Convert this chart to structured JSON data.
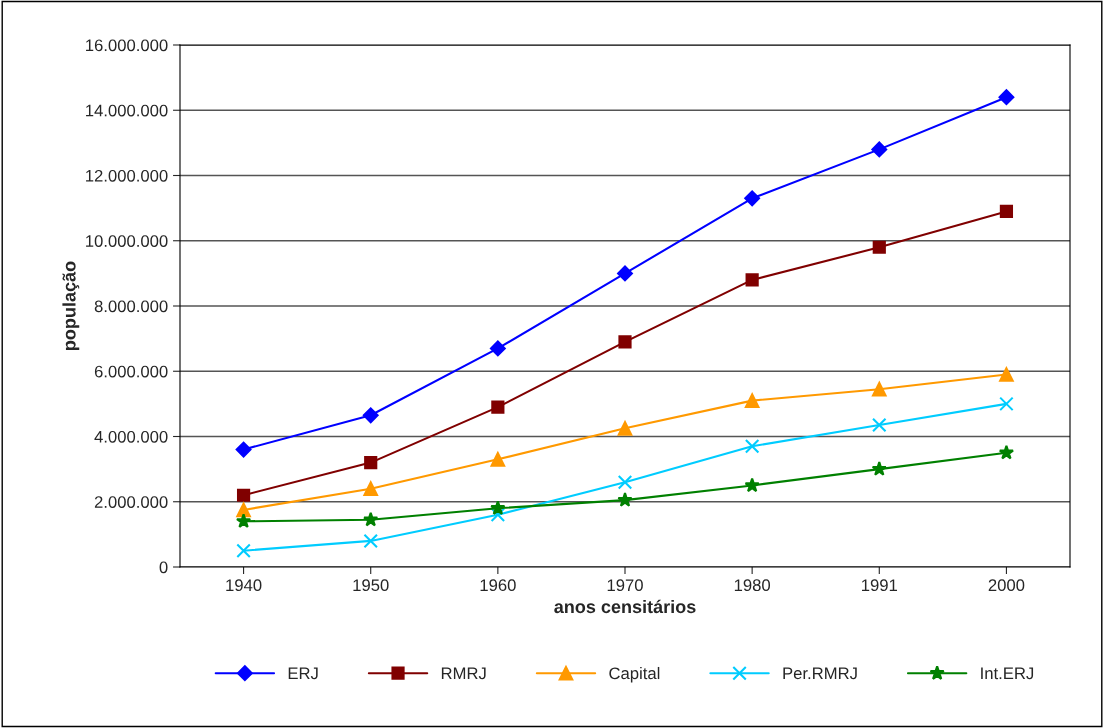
{
  "chart_data": {
    "type": "line",
    "xlabel": "anos censitários",
    "ylabel": "população",
    "categories": [
      "1940",
      "1950",
      "1960",
      "1970",
      "1980",
      "1991",
      "2000"
    ],
    "series": [
      {
        "name": "ERJ",
        "color": "#0000ff",
        "marker": "diamond",
        "values": [
          3600000,
          4650000,
          6700000,
          9000000,
          11300000,
          12800000,
          14400000
        ]
      },
      {
        "name": "RMRJ",
        "color": "#800000",
        "marker": "square",
        "values": [
          2200000,
          3200000,
          4900000,
          6900000,
          8800000,
          9800000,
          10900000
        ]
      },
      {
        "name": "Capital",
        "color": "#ff9900",
        "marker": "triangle",
        "values": [
          1750000,
          2400000,
          3300000,
          4250000,
          5100000,
          5450000,
          5900000
        ]
      },
      {
        "name": "Per.RMRJ",
        "color": "#00ccff",
        "marker": "cross",
        "values": [
          500000,
          800000,
          1600000,
          2600000,
          3700000,
          4350000,
          5000000
        ]
      },
      {
        "name": "Int.ERJ",
        "color": "#008000",
        "marker": "star",
        "values": [
          1400000,
          1450000,
          1800000,
          2050000,
          2500000,
          3000000,
          3500000
        ]
      }
    ],
    "ylim": [
      0,
      16000000
    ],
    "yticks": [
      {
        "value": 0,
        "label": "0"
      },
      {
        "value": 2000000,
        "label": "2.000.000"
      },
      {
        "value": 4000000,
        "label": "4.000.000"
      },
      {
        "value": 6000000,
        "label": "6.000.000"
      },
      {
        "value": 8000000,
        "label": "8.000.000"
      },
      {
        "value": 10000000,
        "label": "10.000.000"
      },
      {
        "value": 12000000,
        "label": "12.000.000"
      },
      {
        "value": 14000000,
        "label": "14.000.000"
      },
      {
        "value": 16000000,
        "label": "16.000.000"
      }
    ],
    "grid": "y",
    "legend": "bottom"
  }
}
